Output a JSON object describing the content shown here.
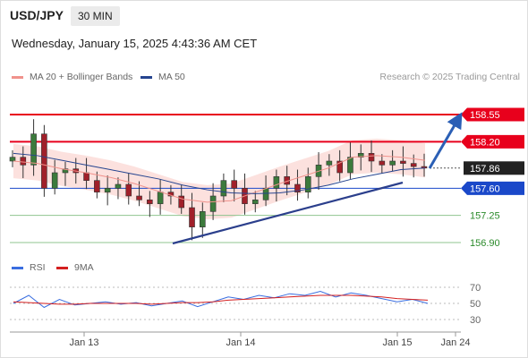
{
  "header": {
    "symbol": "USD/JPY",
    "timeframe": "30 MIN",
    "datetime": "Wednesday, January 15, 2025 4:43:36 AM CET"
  },
  "legend": {
    "bb_label": "MA 20 + Bollinger Bands",
    "ma50_label": "MA 50",
    "research_credit": "Research © 2025 Trading Central"
  },
  "colors": {
    "resistance": "#e8001c",
    "support": "#1a48c9",
    "last": "#222222",
    "minor": "#2a8a2a",
    "trendline": "#2b3f8c",
    "ma50": "#25448f",
    "bb": "#f0928c",
    "rsi": "#3a6ee0",
    "rsi_ma": "#d42020"
  },
  "chart_data": [
    {
      "type": "line",
      "title": "",
      "x_ticks": [
        "Jan 13",
        "Jan 14",
        "Jan 15",
        "Jan 24"
      ],
      "ylim": [
        156.8,
        158.8
      ],
      "levels": [
        {
          "label": "158.55",
          "value": 158.55,
          "kind": "resistance"
        },
        {
          "label": "158.20",
          "value": 158.2,
          "kind": "resistance"
        },
        {
          "label": "157.86",
          "value": 157.86,
          "kind": "last"
        },
        {
          "label": "157.60",
          "value": 157.6,
          "kind": "support"
        },
        {
          "label": "157.25",
          "value": 157.25,
          "kind": "minor"
        },
        {
          "label": "156.90",
          "value": 156.9,
          "kind": "minor"
        }
      ],
      "series": [
        {
          "name": "MA 20 + Bollinger Bands",
          "values": [
            157.95,
            157.92,
            157.85,
            157.8,
            157.74,
            157.66,
            157.56,
            157.46,
            157.42,
            157.44,
            157.55,
            157.66,
            157.76,
            157.86,
            158.0,
            158.02,
            158.0,
            157.96
          ]
        },
        {
          "name": "MA 50",
          "values": [
            158.05,
            158.02,
            157.96,
            157.9,
            157.84,
            157.78,
            157.72,
            157.64,
            157.58,
            157.54,
            157.53,
            157.54,
            157.58,
            157.64,
            157.72,
            157.78,
            157.84,
            157.86
          ]
        }
      ],
      "candles_close": [
        158.0,
        157.9,
        158.3,
        157.6,
        157.8,
        157.85,
        157.8,
        157.7,
        157.55,
        157.6,
        157.65,
        157.5,
        157.45,
        157.4,
        157.55,
        157.5,
        157.35,
        157.1,
        157.3,
        157.5,
        157.7,
        157.6,
        157.4,
        157.45,
        157.6,
        157.75,
        157.65,
        157.55,
        157.75,
        157.9,
        157.95,
        157.8,
        158.0,
        158.05,
        157.95,
        157.9,
        157.95,
        157.92,
        157.88,
        157.86
      ]
    },
    {
      "type": "line",
      "ylim": [
        20,
        80
      ],
      "y_ticks": [
        "70",
        "50",
        "30"
      ],
      "series": [
        {
          "name": "RSI",
          "values": [
            50,
            60,
            45,
            55,
            48,
            50,
            52,
            49,
            51,
            47,
            50,
            53,
            46,
            52,
            58,
            55,
            60,
            57,
            62,
            60,
            65,
            58,
            63,
            60,
            56,
            52,
            55,
            50
          ]
        },
        {
          "name": "9MA",
          "values": [
            52,
            51,
            50,
            49,
            49,
            50,
            50,
            50,
            50,
            49,
            50,
            51,
            51,
            52,
            54,
            55,
            56,
            57,
            58,
            59,
            60,
            60,
            60,
            59,
            58,
            56,
            55,
            54
          ]
        }
      ]
    }
  ]
}
